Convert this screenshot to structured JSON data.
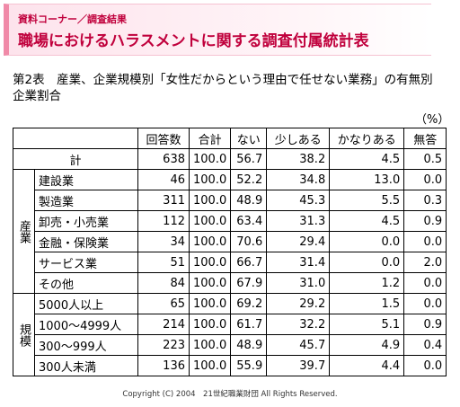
{
  "header": {
    "label": "資料コーナー／調査結果",
    "title": "職場におけるハラスメントに関する調査付属統計表"
  },
  "caption": "第2表　産業、企業規模別「女性だからという理由で任せない業務」の有無別企業割合",
  "unit": "（%）",
  "table": {
    "columns": [
      "回答数",
      "合計",
      "ない",
      "少しある",
      "かなりある",
      "無答"
    ],
    "total": {
      "label": "計",
      "cells": [
        "638",
        "100.0",
        "56.7",
        "38.2",
        "4.5",
        "0.5"
      ]
    },
    "groups": [
      {
        "label": "産業",
        "rows": [
          {
            "label": "建設業",
            "cells": [
              "46",
              "100.0",
              "52.2",
              "34.8",
              "13.0",
              "0.0"
            ]
          },
          {
            "label": "製造業",
            "cells": [
              "311",
              "100.0",
              "48.9",
              "45.3",
              "5.5",
              "0.3"
            ]
          },
          {
            "label": "卸売・小売業",
            "cells": [
              "112",
              "100.0",
              "63.4",
              "31.3",
              "4.5",
              "0.9"
            ]
          },
          {
            "label": "金融・保険業",
            "cells": [
              "34",
              "100.0",
              "70.6",
              "29.4",
              "0.0",
              "0.0"
            ]
          },
          {
            "label": "サービス業",
            "cells": [
              "51",
              "100.0",
              "66.7",
              "31.4",
              "0.0",
              "2.0"
            ]
          },
          {
            "label": "その他",
            "cells": [
              "84",
              "100.0",
              "67.9",
              "31.0",
              "1.2",
              "0.0"
            ]
          }
        ]
      },
      {
        "label": "規模",
        "rows": [
          {
            "label": "5000人以上",
            "cells": [
              "65",
              "100.0",
              "69.2",
              "29.2",
              "1.5",
              "0.0"
            ]
          },
          {
            "label": "1000～4999人",
            "cells": [
              "214",
              "100.0",
              "61.7",
              "32.2",
              "5.1",
              "0.9"
            ]
          },
          {
            "label": "300～999人",
            "cells": [
              "223",
              "100.0",
              "48.9",
              "45.7",
              "4.9",
              "0.4"
            ]
          },
          {
            "label": "300人未満",
            "cells": [
              "136",
              "100.0",
              "55.9",
              "39.7",
              "4.4",
              "0.0"
            ]
          }
        ]
      }
    ]
  },
  "footer": "Copyright (C) 2004　21世紀職業財団 All Rights Reserved."
}
